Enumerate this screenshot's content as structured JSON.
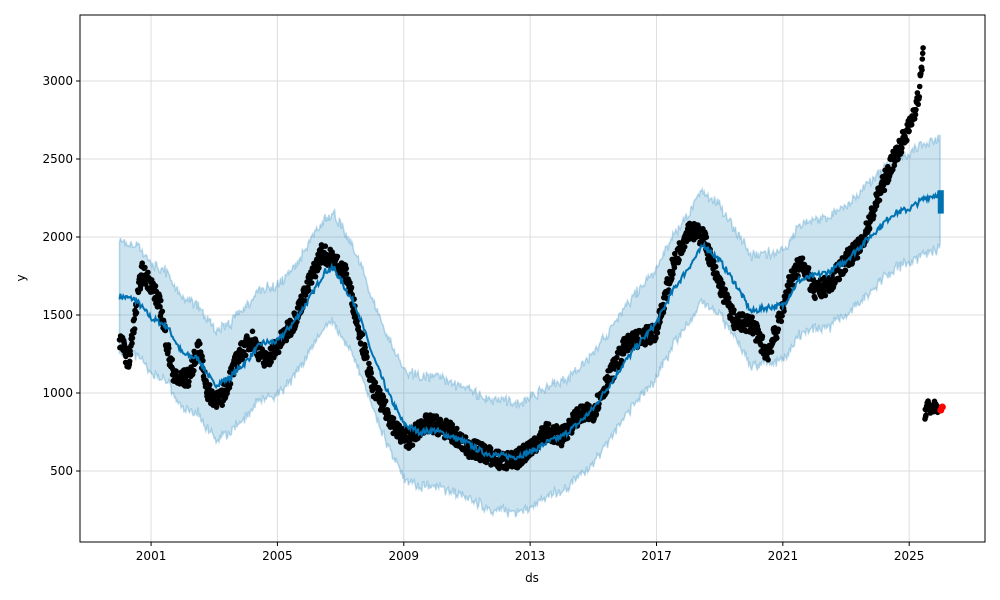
{
  "chart_data": {
    "type": "line",
    "title": "",
    "xlabel": "ds",
    "ylabel": "y",
    "xlim": [
      1998.75,
      2027.4
    ],
    "ylim": [
      45,
      3423
    ],
    "grid": true,
    "x_ticks": [
      {
        "v": 2001,
        "label": "2001"
      },
      {
        "v": 2005,
        "label": "2005"
      },
      {
        "v": 2009,
        "label": "2009"
      },
      {
        "v": 2013,
        "label": "2013"
      },
      {
        "v": 2017,
        "label": "2017"
      },
      {
        "v": 2021,
        "label": "2021"
      },
      {
        "v": 2025,
        "label": "2025"
      }
    ],
    "y_ticks": [
      {
        "v": 500,
        "label": "500"
      },
      {
        "v": 1000,
        "label": "1000"
      },
      {
        "v": 1500,
        "label": "1500"
      },
      {
        "v": 2000,
        "label": "2000"
      },
      {
        "v": 2500,
        "label": "2500"
      },
      {
        "v": 3000,
        "label": "3000"
      }
    ],
    "colors": {
      "forecast": "#0072B2",
      "band": "#0072B2",
      "observed": "#000000",
      "test": "#ff0000"
    },
    "forecast": {
      "x": [
        2000.0,
        2000.5,
        2001.0,
        2001.5,
        2002.0,
        2002.5,
        2003.0,
        2003.5,
        2004.0,
        2004.5,
        2005.0,
        2005.5,
        2006.0,
        2006.5,
        2006.8,
        2007.0,
        2007.5,
        2008.0,
        2008.5,
        2009.0,
        2009.5,
        2010.0,
        2010.5,
        2011.0,
        2011.5,
        2012.0,
        2012.5,
        2013.0,
        2013.5,
        2014.0,
        2014.5,
        2015.0,
        2015.5,
        2016.0,
        2016.5,
        2017.0,
        2017.5,
        2018.0,
        2018.5,
        2019.0,
        2019.5,
        2020.0,
        2020.5,
        2021.0,
        2021.5,
        2022.0,
        2022.5,
        2023.0,
        2023.5,
        2024.0,
        2024.5,
        2025.0,
        2025.5,
        2026.0
      ],
      "yhat": [
        1620,
        1600,
        1480,
        1430,
        1250,
        1220,
        1050,
        1100,
        1200,
        1320,
        1330,
        1450,
        1600,
        1780,
        1800,
        1720,
        1550,
        1250,
        1000,
        800,
        750,
        760,
        720,
        680,
        620,
        600,
        590,
        620,
        680,
        720,
        800,
        900,
        1050,
        1200,
        1330,
        1450,
        1650,
        1800,
        1950,
        1850,
        1700,
        1520,
        1550,
        1560,
        1720,
        1750,
        1780,
        1850,
        1950,
        2050,
        2150,
        2180,
        2250,
        2280
      ],
      "band_halfwidth": 350,
      "final_yhat_range": [
        2150,
        2300
      ]
    },
    "observed": {
      "x": [
        2000.0,
        2000.3,
        2000.5,
        2000.7,
        2001.0,
        2001.3,
        2001.6,
        2001.8,
        2002.2,
        2002.5,
        2002.8,
        2003.2,
        2003.5,
        2003.8,
        2004.2,
        2004.6,
        2005.0,
        2005.5,
        2006.0,
        2006.4,
        2006.8,
        2007.2,
        2007.6,
        2008.0,
        2008.4,
        2008.8,
        2009.2,
        2009.6,
        2010.0,
        2010.5,
        2011.0,
        2011.5,
        2012.0,
        2012.5,
        2013.0,
        2013.5,
        2014.0,
        2014.5,
        2015.0,
        2015.5,
        2016.0,
        2016.5,
        2017.0,
        2017.5,
        2018.0,
        2018.5,
        2018.8,
        2019.2,
        2019.5,
        2020.0,
        2020.5,
        2020.8,
        2021.2,
        2021.6,
        2022.0,
        2022.5,
        2023.0,
        2023.5,
        2024.0,
        2024.5,
        2025.0,
        2025.3,
        2025.45
      ],
      "y": [
        1350,
        1200,
        1500,
        1780,
        1700,
        1550,
        1200,
        1080,
        1100,
        1300,
        1000,
        950,
        1100,
        1250,
        1350,
        1200,
        1300,
        1450,
        1700,
        1900,
        1850,
        1750,
        1400,
        1050,
        900,
        750,
        700,
        800,
        800,
        750,
        650,
        620,
        570,
        560,
        650,
        750,
        720,
        850,
        880,
        1100,
        1300,
        1350,
        1400,
        1800,
        2050,
        2000,
        1800,
        1600,
        1450,
        1450,
        1250,
        1400,
        1700,
        1850,
        1650,
        1700,
        1850,
        1950,
        2250,
        2500,
        2700,
        2900,
        3200
      ]
    },
    "observed_tail": {
      "x": [
        2025.5,
        2025.6,
        2025.7,
        2025.8,
        2025.9
      ],
      "y": [
        860,
        930,
        880,
        920,
        900
      ]
    },
    "test_points": {
      "x": [
        2026.0,
        2026.05
      ],
      "y": [
        890,
        910
      ]
    }
  }
}
